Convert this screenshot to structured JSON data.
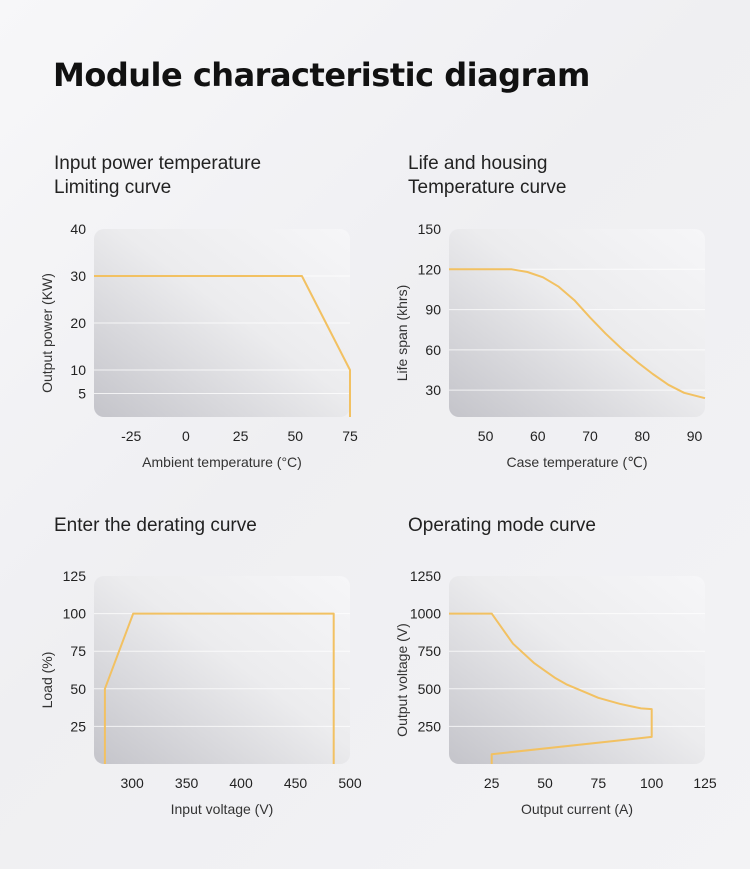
{
  "title": "Module characteristic diagram",
  "colors": {
    "curve": "#f2c162",
    "plot_dark": "#c4c4ca",
    "plot_light": "#ececee",
    "gridline": "#ffffff"
  },
  "chart_data": [
    {
      "type": "line",
      "title_lines": [
        "Input power temperature",
        "Limiting curve"
      ],
      "xlabel": "Ambient temperature (°C)",
      "ylabel": "Output power (KW)",
      "xlim": [
        -42,
        75
      ],
      "ylim": [
        0,
        40
      ],
      "xticks": [
        -25,
        0,
        25,
        50,
        75
      ],
      "yticks": [
        5,
        10,
        20,
        30,
        40
      ],
      "grid": true,
      "series": [
        {
          "x": [
            -42,
            53,
            75,
            75
          ],
          "y": [
            30,
            30,
            10,
            0
          ]
        }
      ]
    },
    {
      "type": "line",
      "title_lines": [
        "Life and housing",
        "Temperature curve"
      ],
      "xlabel": "Case temperature (℃)",
      "ylabel": "Life span (khrs)",
      "xlim": [
        43,
        92
      ],
      "ylim": [
        10,
        150
      ],
      "xticks": [
        50,
        60,
        70,
        80,
        90
      ],
      "yticks": [
        30,
        60,
        90,
        120,
        150
      ],
      "grid": true,
      "series": [
        {
          "x": [
            43,
            50,
            55,
            58,
            61,
            64,
            67,
            70,
            73,
            76,
            79,
            82,
            85,
            88,
            92
          ],
          "y": [
            120,
            120,
            120,
            118,
            114,
            107,
            97,
            84,
            72,
            61,
            51,
            42,
            34,
            28,
            24
          ]
        }
      ]
    },
    {
      "type": "line",
      "title_lines": [
        "Enter the derating curve"
      ],
      "xlabel": "Input voltage (V)",
      "ylabel": "Load (%)",
      "xlim": [
        265,
        500
      ],
      "ylim": [
        0,
        125
      ],
      "xticks": [
        300,
        350,
        400,
        450,
        500
      ],
      "yticks": [
        25,
        50,
        75,
        100,
        125
      ],
      "grid": true,
      "series": [
        {
          "x": [
            275,
            275,
            301,
            485,
            485
          ],
          "y": [
            0,
            50,
            100,
            100,
            0
          ]
        }
      ]
    },
    {
      "type": "line",
      "title_lines": [
        "Operating mode curve"
      ],
      "xlabel": "Output current (A)",
      "ylabel": "Output voltage (V)",
      "xlim": [
        5,
        125
      ],
      "ylim": [
        0,
        1250
      ],
      "xticks": [
        25,
        50,
        75,
        100,
        125
      ],
      "yticks": [
        250,
        500,
        750,
        1000,
        1250
      ],
      "grid": true,
      "series": [
        {
          "x": [
            5,
            25,
            30,
            35,
            40,
            45,
            50,
            55,
            60,
            65,
            70,
            75,
            80,
            85,
            90,
            95,
            100,
            100,
            25,
            25
          ],
          "y": [
            1000,
            1000,
            900,
            800,
            735,
            670,
            620,
            570,
            530,
            500,
            470,
            440,
            420,
            400,
            385,
            370,
            365,
            180,
            65,
            0
          ]
        }
      ]
    }
  ]
}
